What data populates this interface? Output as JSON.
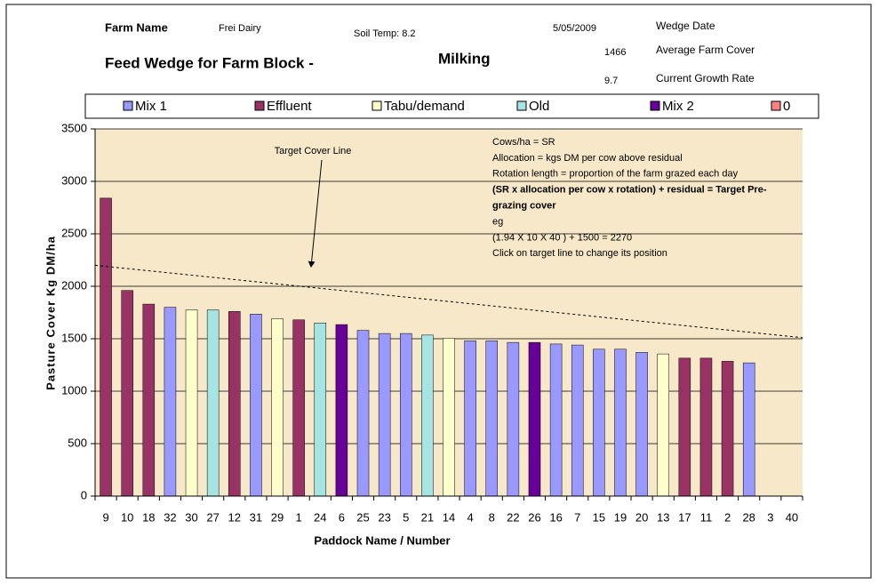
{
  "chart_data": {
    "type": "bar",
    "header": {
      "farm_name_label": "Farm Name",
      "farm_name": "Frei Dairy",
      "soil_temp": "Soil Temp: 8.2",
      "date": "5/05/2009",
      "date_label": "Wedge Date",
      "average_cover": "1466",
      "average_cover_label": "Average Farm Cover",
      "title": "Feed Wedge for Farm Block -",
      "block": "Milking",
      "growth_rate": "9.7",
      "growth_rate_label": "Current Growth Rate"
    },
    "x_label": "Paddock Name / Number",
    "y_label": "Pasture Cover Kg DM/ha",
    "categories": [
      "9",
      "10",
      "18",
      "32",
      "30",
      "27",
      "12",
      "31",
      "29",
      "1",
      "24",
      "6",
      "25",
      "23",
      "5",
      "21",
      "14",
      "4",
      "8",
      "22",
      "26",
      "16",
      "7",
      "15",
      "19",
      "20",
      "13",
      "17",
      "11",
      "2",
      "28",
      "3",
      "40"
    ],
    "series": [
      {
        "name": "Mix 1",
        "color": "#9999FF",
        "values": [
          null,
          null,
          null,
          1800,
          null,
          null,
          null,
          1735,
          null,
          null,
          null,
          null,
          1580,
          1550,
          1550,
          null,
          null,
          1480,
          1480,
          1465,
          null,
          1450,
          1440,
          1400,
          1400,
          1370,
          null,
          null,
          null,
          null,
          1270,
          null,
          null
        ]
      },
      {
        "name": "Effluent",
        "color": "#993366",
        "values": [
          2840,
          1960,
          1830,
          null,
          null,
          null,
          1760,
          null,
          null,
          1680,
          null,
          null,
          null,
          null,
          null,
          null,
          null,
          null,
          null,
          null,
          null,
          null,
          null,
          null,
          null,
          null,
          null,
          1315,
          1315,
          1285,
          null,
          null,
          null
        ]
      },
      {
        "name": "Tabu/demand",
        "color": "#FFFFCC",
        "values": [
          null,
          null,
          null,
          null,
          1775,
          null,
          null,
          null,
          1690,
          null,
          null,
          null,
          null,
          null,
          null,
          null,
          1505,
          null,
          null,
          null,
          null,
          null,
          null,
          null,
          null,
          null,
          1355,
          null,
          null,
          null,
          null,
          null,
          null
        ]
      },
      {
        "name": "Old",
        "color": "#A6E3E3",
        "values": [
          null,
          null,
          null,
          null,
          null,
          1775,
          null,
          null,
          null,
          null,
          1650,
          null,
          null,
          null,
          null,
          1535,
          null,
          null,
          null,
          null,
          null,
          null,
          null,
          null,
          null,
          null,
          null,
          null,
          null,
          null,
          null,
          null,
          null
        ]
      },
      {
        "name": "Mix 2",
        "color": "#660099",
        "values": [
          null,
          null,
          null,
          null,
          null,
          null,
          null,
          null,
          null,
          null,
          null,
          1635,
          null,
          null,
          null,
          null,
          null,
          null,
          null,
          null,
          1465,
          null,
          null,
          null,
          null,
          null,
          null,
          null,
          null,
          null,
          null,
          null,
          null
        ]
      },
      {
        "name": "0",
        "color": "#FF8080",
        "values": [
          null,
          null,
          null,
          null,
          null,
          null,
          null,
          null,
          null,
          null,
          null,
          null,
          null,
          null,
          null,
          null,
          null,
          null,
          null,
          null,
          null,
          null,
          null,
          null,
          null,
          null,
          null,
          null,
          null,
          null,
          null,
          null,
          null
        ]
      }
    ],
    "target_line": {
      "values": [
        2200,
        1510
      ]
    },
    "target_annotation": "Target Cover Line",
    "notes": [
      "Cows/ha = SR",
      "Allocation = kgs DM per cow above residual",
      "Rotation length = proportion of the farm grazed each day",
      "(SR x allocation per cow x rotation) + residual = Target Pre-",
      "grazing cover",
      "eg",
      "(1.94 X 10 X 40 ) + 1500 = 2270",
      "Click on target line to change its position"
    ],
    "ylim": [
      0,
      3500
    ],
    "yticks": [
      0,
      500,
      1000,
      1500,
      2000,
      2500,
      3000,
      3500
    ],
    "grid": true
  }
}
